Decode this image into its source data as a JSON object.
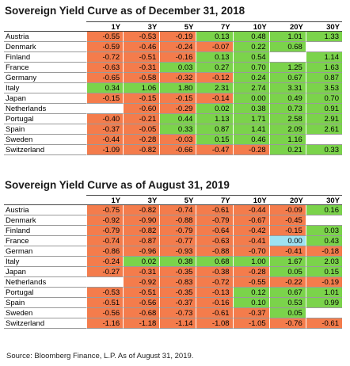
{
  "colors": {
    "negative": "#f47c4c",
    "positive": "#7bd34b",
    "zero": "#9ee2f2"
  },
  "headers": [
    "1Y",
    "3Y",
    "5Y",
    "7Y",
    "10Y",
    "20Y",
    "30Y"
  ],
  "tables": [
    {
      "title": "Sovereign Yield Curve as of December 31, 2018",
      "rows": [
        {
          "country": "Austria",
          "values": [
            "-0.55",
            "-0.53",
            "-0.19",
            "0.13",
            "0.48",
            "1.01",
            "1.33"
          ],
          "colors": [
            "o",
            "o",
            "o",
            "g",
            "g",
            "g",
            "g"
          ]
        },
        {
          "country": "Denmark",
          "values": [
            "-0.59",
            "-0.46",
            "-0.24",
            "-0.07",
            "0.22",
            "0.68",
            ""
          ],
          "colors": [
            "o",
            "o",
            "o",
            "o",
            "g",
            "g",
            "w"
          ]
        },
        {
          "country": "Finland",
          "values": [
            "-0.72",
            "-0.51",
            "-0.16",
            "0.13",
            "0.54",
            "",
            "1.14"
          ],
          "colors": [
            "o",
            "o",
            "o",
            "g",
            "g",
            "w",
            "g"
          ]
        },
        {
          "country": "France",
          "values": [
            "-0.63",
            "-0.31",
            "0.03",
            "0.27",
            "0.70",
            "1.25",
            "1.63"
          ],
          "colors": [
            "o",
            "o",
            "g",
            "g",
            "g",
            "g",
            "g"
          ]
        },
        {
          "country": "Germany",
          "values": [
            "-0.65",
            "-0.58",
            "-0.32",
            "-0.12",
            "0.24",
            "0.67",
            "0.87"
          ],
          "colors": [
            "o",
            "o",
            "o",
            "o",
            "g",
            "g",
            "g"
          ]
        },
        {
          "country": "Italy",
          "values": [
            "0.34",
            "1.06",
            "1.80",
            "2.31",
            "2.74",
            "3.31",
            "3.53"
          ],
          "colors": [
            "g",
            "g",
            "g",
            "g",
            "g",
            "g",
            "g"
          ]
        },
        {
          "country": "Japan",
          "values": [
            "-0.15",
            "-0.15",
            "-0.15",
            "-0.14",
            "0.00",
            "0.49",
            "0.70"
          ],
          "colors": [
            "o",
            "o",
            "o",
            "o",
            "g",
            "g",
            "g"
          ]
        },
        {
          "country": "Netherlands",
          "values": [
            "",
            "-0.60",
            "-0.29",
            "0.02",
            "0.38",
            "0.73",
            "0.91"
          ],
          "colors": [
            "w",
            "o",
            "o",
            "g",
            "g",
            "g",
            "g"
          ]
        },
        {
          "country": "Portugal",
          "values": [
            "-0.40",
            "-0.21",
            "0.44",
            "1.13",
            "1.71",
            "2.58",
            "2.91"
          ],
          "colors": [
            "o",
            "o",
            "g",
            "g",
            "g",
            "g",
            "g"
          ]
        },
        {
          "country": "Spain",
          "values": [
            "-0.37",
            "-0.05",
            "0.33",
            "0.87",
            "1.41",
            "2.09",
            "2.61"
          ],
          "colors": [
            "o",
            "o",
            "g",
            "g",
            "g",
            "g",
            "g"
          ]
        },
        {
          "country": "Sweden",
          "values": [
            "-0.44",
            "-0.28",
            "-0.03",
            "0.15",
            "0.46",
            "1.16",
            ""
          ],
          "colors": [
            "o",
            "o",
            "o",
            "g",
            "g",
            "g",
            "w"
          ]
        },
        {
          "country": "Switzerland",
          "values": [
            "-1.09",
            "-0.82",
            "-0.66",
            "-0.47",
            "-0.28",
            "0.21",
            "0.33"
          ],
          "colors": [
            "o",
            "o",
            "o",
            "o",
            "o",
            "g",
            "g"
          ]
        }
      ]
    },
    {
      "title": "Sovereign Yield Curve as of August 31, 2019",
      "rows": [
        {
          "country": "Austria",
          "values": [
            "-0.75",
            "-0.82",
            "-0.74",
            "-0.61",
            "-0.44",
            "-0.09",
            "0.16"
          ],
          "colors": [
            "o",
            "o",
            "o",
            "o",
            "o",
            "o",
            "g"
          ]
        },
        {
          "country": "Denmark",
          "values": [
            "-0.92",
            "-0.90",
            "-0.88",
            "-0.79",
            "-0.67",
            "-0.45",
            ""
          ],
          "colors": [
            "o",
            "o",
            "o",
            "o",
            "o",
            "o",
            "w"
          ]
        },
        {
          "country": "Finland",
          "values": [
            "-0.79",
            "-0.82",
            "-0.79",
            "-0.64",
            "-0.42",
            "-0.15",
            "0.03"
          ],
          "colors": [
            "o",
            "o",
            "o",
            "o",
            "o",
            "o",
            "g"
          ]
        },
        {
          "country": "France",
          "values": [
            "-0.74",
            "-0.87",
            "-0.77",
            "-0.63",
            "-0.41",
            "0.00",
            "0.43"
          ],
          "colors": [
            "o",
            "o",
            "o",
            "o",
            "o",
            "b",
            "g"
          ]
        },
        {
          "country": "German",
          "values": [
            "-0.86",
            "-0.96",
            "-0.93",
            "-0.88",
            "-0.70",
            "-0.41",
            "-0.18"
          ],
          "colors": [
            "o",
            "o",
            "o",
            "o",
            "o",
            "o",
            "o"
          ]
        },
        {
          "country": "Italy",
          "values": [
            "-0.24",
            "0.02",
            "0.38",
            "0.68",
            "1.00",
            "1.67",
            "2.03"
          ],
          "colors": [
            "o",
            "g",
            "g",
            "g",
            "g",
            "g",
            "g"
          ]
        },
        {
          "country": "Japan",
          "values": [
            "-0.27",
            "-0.31",
            "-0.35",
            "-0.38",
            "-0.28",
            "0.05",
            "0.15"
          ],
          "colors": [
            "o",
            "o",
            "o",
            "o",
            "o",
            "g",
            "g"
          ]
        },
        {
          "country": "Netherlands",
          "values": [
            "",
            "-0.92",
            "-0.83",
            "-0.72",
            "-0.55",
            "-0.22",
            "-0.19"
          ],
          "colors": [
            "w",
            "o",
            "o",
            "o",
            "o",
            "o",
            "o"
          ]
        },
        {
          "country": "Portugal",
          "values": [
            "-0.53",
            "-0.51",
            "-0.35",
            "-0.13",
            "0.12",
            "0.67",
            "1.01"
          ],
          "colors": [
            "o",
            "o",
            "o",
            "o",
            "g",
            "g",
            "g"
          ]
        },
        {
          "country": "Spain",
          "values": [
            "-0.51",
            "-0.56",
            "-0.37",
            "-0.16",
            "0.10",
            "0.53",
            "0.99"
          ],
          "colors": [
            "o",
            "o",
            "o",
            "o",
            "g",
            "g",
            "g"
          ]
        },
        {
          "country": "Sweden",
          "values": [
            "-0.56",
            "-0.68",
            "-0.73",
            "-0.61",
            "-0.37",
            "0.05",
            ""
          ],
          "colors": [
            "o",
            "o",
            "o",
            "o",
            "o",
            "g",
            "w"
          ]
        },
        {
          "country": "Switzerland",
          "values": [
            "-1.16",
            "-1.18",
            "-1.14",
            "-1.08",
            "-1.05",
            "-0.76",
            "-0.61"
          ],
          "colors": [
            "o",
            "o",
            "o",
            "o",
            "o",
            "o",
            "o"
          ]
        }
      ]
    }
  ],
  "source": "Source: Bloomberg Finance, L.P. As of August 31, 2019."
}
